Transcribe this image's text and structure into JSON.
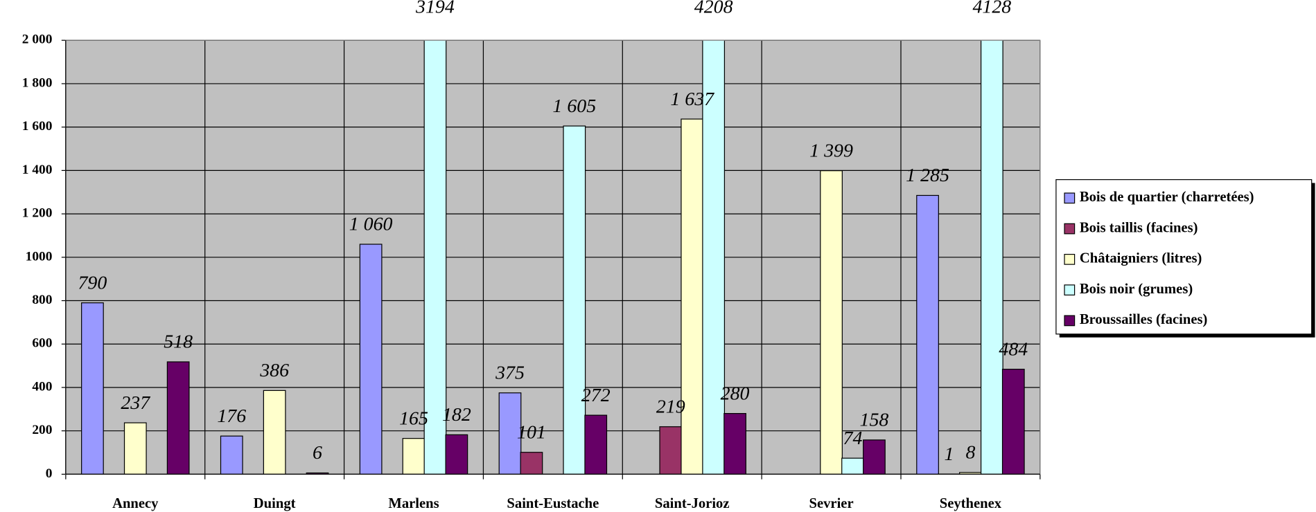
{
  "chart_data": {
    "type": "bar",
    "categories": [
      "Annecy",
      "Duingt",
      "Marlens",
      "Saint-Eustache",
      "Saint-Jorioz",
      "Sevrier",
      "Seythenex"
    ],
    "series": [
      {
        "name": "Bois de quartier (charretées)",
        "color": "#9999ff",
        "values": [
          790,
          176,
          1060,
          375,
          null,
          null,
          1285
        ],
        "value_labels": [
          "790",
          "176",
          "1 060",
          "375",
          null,
          null,
          "1 285"
        ]
      },
      {
        "name": "Bois taillis (facines)",
        "color": "#993366",
        "values": [
          null,
          null,
          null,
          101,
          219,
          null,
          1
        ],
        "value_labels": [
          null,
          null,
          null,
          "101",
          "219",
          null,
          "1"
        ]
      },
      {
        "name": "Châtaigniers (litres)",
        "color": "#ffffcc",
        "values": [
          237,
          386,
          165,
          null,
          1637,
          1399,
          8
        ],
        "value_labels": [
          "237",
          "386",
          "165",
          null,
          "1 637",
          "1 399",
          "8"
        ]
      },
      {
        "name": "Bois noir (grumes)",
        "color": "#ccffff",
        "values": [
          null,
          null,
          3194,
          1605,
          4208,
          74,
          4128
        ],
        "value_labels": [
          null,
          null,
          "3194",
          "1 605",
          "4208",
          "74",
          "4128"
        ]
      },
      {
        "name": "Broussailles (facines)",
        "color": "#660066",
        "values": [
          518,
          6,
          182,
          272,
          280,
          158,
          484
        ],
        "value_labels": [
          "518",
          "6",
          "182",
          "272",
          "280",
          "158",
          "484"
        ]
      }
    ],
    "ylim": [
      0,
      2000
    ],
    "yticks": [
      0,
      200,
      400,
      600,
      800,
      1000,
      {
        "value": 1200,
        "label": "1 200"
      },
      {
        "value": 1400,
        "label": "1 400"
      },
      {
        "value": 1600,
        "label": "1 600"
      },
      {
        "value": 1800,
        "label": "1 800"
      },
      {
        "value": 2000,
        "label": "2 000"
      }
    ],
    "grid": true,
    "legend": "right"
  }
}
